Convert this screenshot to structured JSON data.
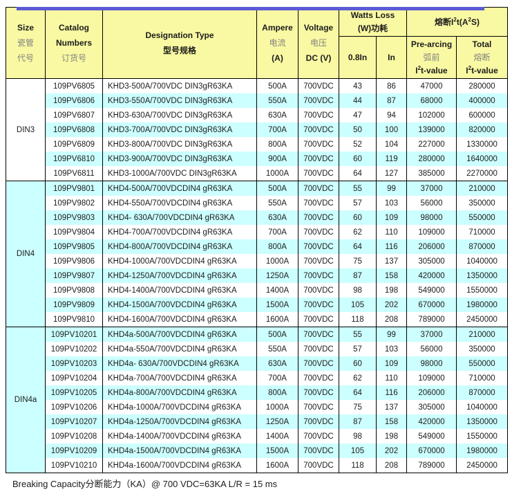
{
  "colors": {
    "top_bar": "#5b5bd6",
    "header_bg": "#f9f9a3",
    "stripe": "#ccffff",
    "border": "#000000"
  },
  "header": {
    "size": {
      "en": "Size",
      "zh1": "瓷管",
      "zh2": "代号"
    },
    "catalog": {
      "en1": "Catalog",
      "en2": "Numbers",
      "zh": "订货号"
    },
    "designation": {
      "en": "Designation Type",
      "zh": "型号规格"
    },
    "ampere": {
      "en": "Ampere",
      "zh": "电流",
      "unit": "(A)"
    },
    "voltage": {
      "en": "Voltage",
      "zh": "电压",
      "unit": "DC (V)"
    },
    "watts_loss": {
      "line1": "Watts Loss",
      "line2": "(W)功耗"
    },
    "i2t_group": {
      "title": "熔断I^2t(A^2S)"
    },
    "sub_08in": "0.8In",
    "sub_in": "In",
    "prearcing": {
      "en": "Pre-arcing",
      "zh": "弧前",
      "value_label": "I^2t-value"
    },
    "total": {
      "en": "Total",
      "zh": "熔断",
      "value_label": "I^2t-value"
    }
  },
  "columns_order": [
    "catalog",
    "designation",
    "ampere",
    "voltage",
    "watts-08in",
    "watts-in",
    "prearcing-i2t",
    "total-i2t"
  ],
  "sections": [
    {
      "size_label": "DIN3",
      "stripe_start": "white",
      "rows": [
        [
          "109PV6805",
          "KHD3-500A/700VDC DIN3gR63KA",
          "500A",
          "700VDC",
          "43",
          "86",
          "47000",
          "280000"
        ],
        [
          "109PV6806",
          "KHD3-550A/700VDC DIN3gR63KA",
          "550A",
          "700VDC",
          "44",
          "87",
          "68000",
          "400000"
        ],
        [
          "109PV6807",
          "KHD3-630A/700VDC DIN3gR63KA",
          "630A",
          "700VDC",
          "47",
          "94",
          "102000",
          "600000"
        ],
        [
          "109PV6808",
          "KHD3-700A/700VDC DIN3gR63KA",
          "700A",
          "700VDC",
          "50",
          "100",
          "139000",
          "820000"
        ],
        [
          "109PV6809",
          "KHD3-800A/700VDC DIN3gR63KA",
          "800A",
          "700VDC",
          "52",
          "104",
          "227000",
          "1330000"
        ],
        [
          "109PV6810",
          "KHD3-900A/700VDC DIN3gR63KA",
          "900A",
          "700VDC",
          "60",
          "119",
          "280000",
          "1640000"
        ],
        [
          "109PV6811",
          "KHD3-1000A/700VDC DIN3gR63KA",
          "1000A",
          "700VDC",
          "64",
          "127",
          "385000",
          "2270000"
        ]
      ]
    },
    {
      "size_label": "DIN4",
      "stripe_start": "cyan",
      "rows": [
        [
          "109PV9801",
          "KHD4-500A/700VDCDIN4 gR63KA",
          "500A",
          "700VDC",
          "55",
          "99",
          "37000",
          "210000"
        ],
        [
          "109PV9802",
          "KHD4-550A/700VDCDIN4 gR63KA",
          "550A",
          "700VDC",
          "57",
          "103",
          "56000",
          "350000"
        ],
        [
          "109PV9803",
          "KHD4- 630A/700VDCDIN4 gR63KA",
          "630A",
          "700VDC",
          "60",
          "109",
          "98000",
          "550000"
        ],
        [
          "109PV9804",
          "KHD4-700A/700VDCDIN4 gR63KA",
          "700A",
          "700VDC",
          "62",
          "110",
          "109000",
          "710000"
        ],
        [
          "109PV9805",
          "KHD4-800A/700VDCDIN4 gR63KA",
          "800A",
          "700VDC",
          "64",
          "116",
          "206000",
          "870000"
        ],
        [
          "109PV9806",
          "KHD4-1000A/700VDCDIN4 gR63KA",
          "1000A",
          "700VDC",
          "75",
          "137",
          "305000",
          "1040000"
        ],
        [
          "109PV9807",
          "KHD4-1250A/700VDCDIN4 gR63KA",
          "1250A",
          "700VDC",
          "87",
          "158",
          "420000",
          "1350000"
        ],
        [
          "109PV9808",
          "KHD4-1400A/700VDCDIN4 gR63KA",
          "1400A",
          "700VDC",
          "98",
          "198",
          "549000",
          "1550000"
        ],
        [
          "109PV9809",
          "KHD4-1500A/700VDCDIN4 gR63KA",
          "1500A",
          "700VDC",
          "105",
          "202",
          "670000",
          "1980000"
        ],
        [
          "109PV9810",
          "KHD4-1600A/700VDCDIN4 gR63KA",
          "1600A",
          "700VDC",
          "118",
          "208",
          "789000",
          "2450000"
        ]
      ]
    },
    {
      "size_label": "DIN4a",
      "stripe_start": "cyan",
      "rows": [
        [
          "109PV10201",
          "KHD4a-500A/700VDCDIN4 gR63KA",
          "500A",
          "700VDC",
          "55",
          "99",
          "37000",
          "210000"
        ],
        [
          "109PV10202",
          "KHD4a-550A/700VDCDIN4 gR63KA",
          "550A",
          "700VDC",
          "57",
          "103",
          "56000",
          "350000"
        ],
        [
          "109PV10203",
          "KHD4a- 630A/700VDCDIN4 gR63KA",
          "630A",
          "700VDC",
          "60",
          "109",
          "98000",
          "550000"
        ],
        [
          "109PV10204",
          "KHD4a-700A/700VDCDIN4 gR63KA",
          "700A",
          "700VDC",
          "62",
          "110",
          "109000",
          "710000"
        ],
        [
          "109PV10205",
          "KHD4a-800A/700VDCDIN4 gR63KA",
          "800A",
          "700VDC",
          "64",
          "116",
          "206000",
          "870000"
        ],
        [
          "109PV10206",
          "KHD4a-1000A/700VDCDIN4 gR63KA",
          "1000A",
          "700VDC",
          "75",
          "137",
          "305000",
          "1040000"
        ],
        [
          "109PV10207",
          "KHD4a-1250A/700VDCDIN4 gR63KA",
          "1250A",
          "700VDC",
          "87",
          "158",
          "420000",
          "1350000"
        ],
        [
          "109PV10208",
          "KHD4a-1400A/700VDCDIN4 gR63KA",
          "1400A",
          "700VDC",
          "98",
          "198",
          "549000",
          "1550000"
        ],
        [
          "109PV10209",
          "KHD4a-1500A/700VDCDIN4 gR63KA",
          "1500A",
          "700VDC",
          "105",
          "202",
          "670000",
          "1980000"
        ],
        [
          "109PV10210",
          "KHD4a-1600A/700VDCDIN4 gR63KA",
          "1600A",
          "700VDC",
          "118",
          "208",
          "789000",
          "2450000"
        ]
      ]
    }
  ],
  "footer": {
    "note": "Breaking Capacity分断能力（KA）@ 700 VDC=63KA   L/R = 15 ms"
  }
}
